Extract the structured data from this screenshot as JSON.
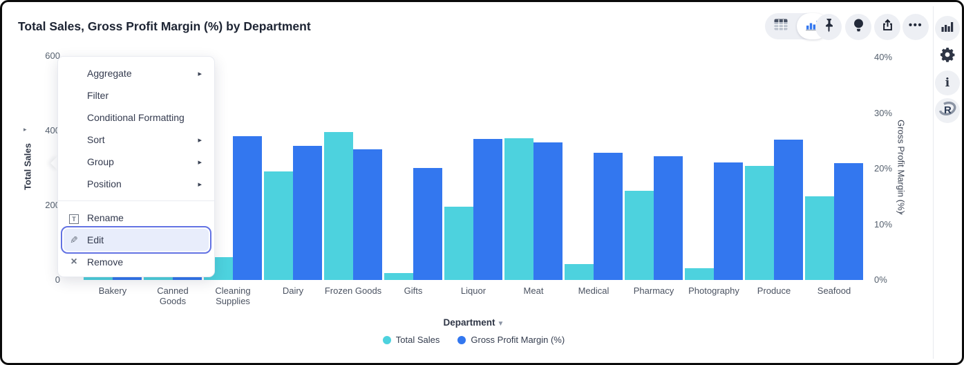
{
  "header": {
    "title": "Total Sales, Gross Profit Margin (%) by Department"
  },
  "toolbar": {
    "view_toggle": [
      {
        "icon": "table-view-icon",
        "selected": false
      },
      {
        "icon": "bar-chart-view-icon",
        "selected": true
      }
    ],
    "buttons": [
      {
        "icon": "pin-icon"
      },
      {
        "icon": "lightbulb-icon"
      },
      {
        "icon": "export-icon"
      },
      {
        "icon": "more-options-icon"
      }
    ]
  },
  "sidebar": {
    "buttons": [
      {
        "icon": "chart-panel-icon"
      },
      {
        "icon": "settings-gear-icon"
      },
      {
        "icon": "info-icon",
        "glyph": "i"
      },
      {
        "icon": "r-logo-icon",
        "glyph": "R"
      }
    ]
  },
  "context_menu": {
    "items": [
      {
        "label": "Aggregate",
        "has_submenu": true
      },
      {
        "label": "Filter",
        "has_submenu": false
      },
      {
        "label": "Conditional Formatting",
        "has_submenu": false
      },
      {
        "label": "Sort",
        "has_submenu": true
      },
      {
        "label": "Group",
        "has_submenu": true
      },
      {
        "label": "Position",
        "has_submenu": true
      }
    ],
    "actions": [
      {
        "label": "Rename",
        "icon": "rename-icon",
        "highlighted": false
      },
      {
        "label": "Edit",
        "icon": "pencil-icon",
        "highlighted": true
      },
      {
        "label": "Remove",
        "icon": "remove-x-icon",
        "highlighted": false
      }
    ],
    "submenu_arrow": "▸"
  },
  "colors": {
    "total_sales": "#4DD2DE",
    "gross_profit_margin": "#3377EF",
    "menu_highlight_border": "#6272E3"
  },
  "chart_data": {
    "type": "bar",
    "title": "Total Sales, Gross Profit Margin (%) by Department",
    "categories": [
      "Bakery",
      "Canned Goods",
      "Cleaning Supplies",
      "Dairy",
      "Frozen Goods",
      "Gifts",
      "Liquor",
      "Meat",
      "Medical",
      "Pharmacy",
      "Photography",
      "Produce",
      "Seafood"
    ],
    "series": [
      {
        "name": "Total Sales",
        "axis": "left",
        "color": "#4DD2DE",
        "values": [
          150,
          180,
          62,
          290,
          396,
          19,
          197,
          379,
          42,
          239,
          32,
          305,
          225
        ]
      },
      {
        "name": "Gross Profit Margin (%)",
        "axis": "right",
        "color": "#3377EF",
        "values": [
          23.0,
          24.0,
          25.8,
          24.1,
          23.5,
          20.1,
          25.3,
          24.7,
          22.9,
          22.2,
          21.1,
          25.2,
          21.0
        ]
      }
    ],
    "left_axis": {
      "label": "Total Sales",
      "ticks": [
        0,
        200,
        400,
        600
      ],
      "range": [
        0,
        600
      ]
    },
    "right_axis": {
      "label": "Gross Profit Margin (%)",
      "ticks": [
        "0%",
        "10%",
        "20%",
        "30%",
        "40%"
      ],
      "tick_values": [
        0,
        10,
        20,
        30,
        40
      ],
      "range": [
        0,
        40
      ]
    },
    "x_axis": {
      "label": "Department"
    },
    "legend": [
      {
        "label": "Total Sales",
        "color": "#4DD2DE"
      },
      {
        "label": "Gross Profit Margin (%)",
        "color": "#3377EF"
      }
    ],
    "legend_position": "bottom",
    "grid": false
  }
}
